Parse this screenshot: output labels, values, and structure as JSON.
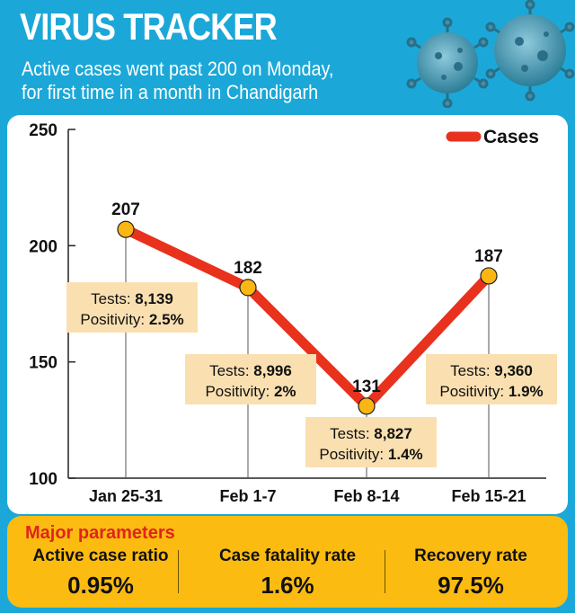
{
  "header": {
    "title": "VIRUS TRACKER",
    "subtitle_line1": "Active cases went past 200 on Monday,",
    "subtitle_line2": "for first time in a month in Chandigarh"
  },
  "chart_data": {
    "type": "line",
    "categories": [
      "Jan 25-31",
      "Feb 1-7",
      "Feb 8-14",
      "Feb 15-21"
    ],
    "series": [
      {
        "name": "Cases",
        "values": [
          207,
          182,
          131,
          187
        ],
        "color": "#e8321e"
      }
    ],
    "ylim": [
      100,
      250
    ],
    "yticks": [
      100,
      150,
      200,
      250
    ],
    "legend_position": "top-right",
    "marker_color": "#fbb614",
    "annotations": [
      {
        "tests_label": "Tests:",
        "tests": "8,139",
        "positivity_label": "Positivity:",
        "positivity": "2.5%"
      },
      {
        "tests_label": "Tests:",
        "tests": "8,996",
        "positivity_label": "Positivity:",
        "positivity": "2%"
      },
      {
        "tests_label": "Tests:",
        "tests": "8,827",
        "positivity_label": "Positivity:",
        "positivity": "1.4%"
      },
      {
        "tests_label": "Tests:",
        "tests": "9,360",
        "positivity_label": "Positivity:",
        "positivity": "1.9%"
      }
    ]
  },
  "parameters": {
    "title": "Major parameters",
    "items": [
      {
        "label": "Active case ratio",
        "value": "0.95%"
      },
      {
        "label": "Case fatality rate",
        "value": "1.6%"
      },
      {
        "label": "Recovery rate",
        "value": "97.5%"
      }
    ]
  },
  "colors": {
    "background": "#1ba8d8",
    "panel": "#ffffff",
    "params_background": "#fbbb11",
    "params_title": "#e0241e",
    "annotation_box": "#fae0b0"
  }
}
